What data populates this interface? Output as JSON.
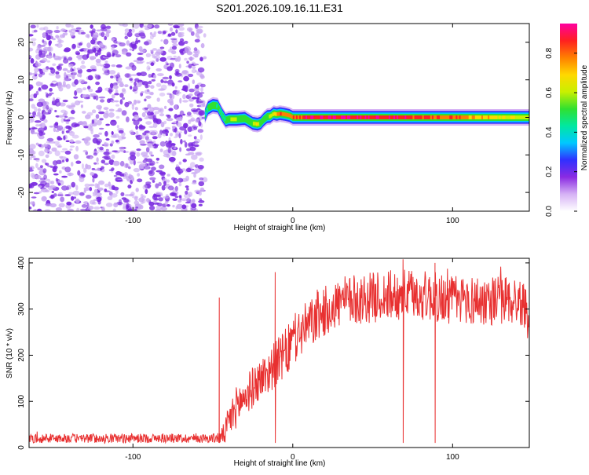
{
  "figure_title": "S201.2026.109.16.11.E31",
  "colors": {
    "noise": "#7a2ae0",
    "noise_light": "#c9a8f2",
    "snr_line": "#e83030"
  },
  "chart_data": [
    {
      "type": "heatmap",
      "title": "S201.2026.109.16.11.E31",
      "xlabel": "Height of straight line (km)",
      "ylabel": "Frequency (Hz)",
      "xlim": [
        -165,
        148
      ],
      "ylim": [
        -25,
        25
      ],
      "x_ticks": [
        -100,
        0,
        100
      ],
      "x_tick_labels": [
        "-100",
        "0",
        "100"
      ],
      "y_ticks": [
        -20,
        -10,
        0,
        10,
        20
      ],
      "y_tick_labels": [
        "-20",
        "-10",
        "0",
        "10",
        "20"
      ],
      "noise_region_x": [
        -165,
        -55
      ],
      "signal_track": {
        "x": [
          -55,
          -53,
          -50,
          -47,
          -44,
          -42,
          -40,
          -35,
          -30,
          -25,
          -22,
          -20,
          -18,
          -16,
          -14,
          -12,
          -10,
          -8,
          -5,
          -2,
          0,
          10,
          20,
          40,
          60,
          80,
          100,
          120,
          148
        ],
        "freq": [
          0.5,
          2.5,
          3.2,
          3.0,
          0.5,
          -0.8,
          -0.5,
          -0.5,
          -0.3,
          -1.6,
          -1.8,
          -1.5,
          -0.5,
          0.2,
          0.3,
          1.0,
          0.8,
          1.0,
          0.8,
          0.5,
          0.0,
          0.0,
          0.0,
          0.0,
          0.0,
          0.0,
          0.0,
          0.0,
          0.0
        ],
        "amp": [
          0.35,
          0.5,
          0.55,
          0.5,
          0.45,
          0.5,
          0.55,
          0.6,
          0.55,
          0.6,
          0.65,
          0.55,
          0.5,
          0.55,
          0.6,
          0.7,
          0.8,
          0.85,
          0.8,
          0.8,
          0.85,
          0.92,
          0.95,
          0.95,
          0.92,
          0.9,
          0.85,
          0.75,
          0.6
        ]
      },
      "colorbar": {
        "label": "Normalized spectral amplitude",
        "range": [
          0.0,
          0.95
        ],
        "ticks": [
          0.0,
          0.2,
          0.4,
          0.6,
          0.8
        ],
        "tick_labels": [
          "0.0",
          "0.2",
          "0.4",
          "0.6",
          "0.8"
        ],
        "colors": [
          "#ffffff",
          "#d6b2f5",
          "#8a2be2",
          "#3030ff",
          "#00c8ff",
          "#00e8a0",
          "#30e030",
          "#c8f000",
          "#ffd800",
          "#ff8000",
          "#ff2020",
          "#ff00a0"
        ]
      }
    },
    {
      "type": "line",
      "xlabel": "Height of straight line (km)",
      "ylabel": "SNR (10 * v/v)",
      "xlim": [
        -165,
        148
      ],
      "ylim": [
        0,
        410
      ],
      "x_ticks": [
        -100,
        0,
        100
      ],
      "x_tick_labels": [
        "-100",
        "0",
        "100"
      ],
      "y_ticks": [
        0,
        100,
        200,
        300,
        400
      ],
      "y_tick_labels": [
        "0",
        "100",
        "200",
        "300",
        "400"
      ],
      "series": [
        {
          "name": "SNR",
          "envelope": {
            "x": [
              -165,
              -120,
              -80,
              -50,
              -45,
              -42,
              -40,
              -35,
              -30,
              -25,
              -20,
              -15,
              -10,
              -5,
              0,
              5,
              10,
              15,
              20,
              25,
              30,
              40,
              50,
              60,
              70,
              80,
              90,
              100,
              110,
              120,
              130,
              140,
              148
            ],
            "mean": [
              20,
              20,
              20,
              20,
              22,
              35,
              55,
              90,
              110,
              130,
              150,
              165,
              185,
              200,
              230,
              250,
              265,
              280,
              295,
              305,
              315,
              320,
              325,
              330,
              332,
              330,
              325,
              320,
              320,
              318,
              320,
              318,
              300
            ],
            "spread": [
              10,
              10,
              10,
              10,
              15,
              30,
              40,
              45,
              45,
              45,
              45,
              50,
              50,
              55,
              55,
              55,
              55,
              55,
              55,
              55,
              55,
              55,
              55,
              55,
              55,
              55,
              55,
              55,
              55,
              55,
              55,
              55,
              45
            ]
          },
          "spikes": [
            {
              "x": -46,
              "y": 325
            },
            {
              "x": -11,
              "y": 380
            },
            {
              "x": 69,
              "y": 408
            },
            {
              "x": 89,
              "y": 400
            }
          ]
        }
      ]
    }
  ]
}
